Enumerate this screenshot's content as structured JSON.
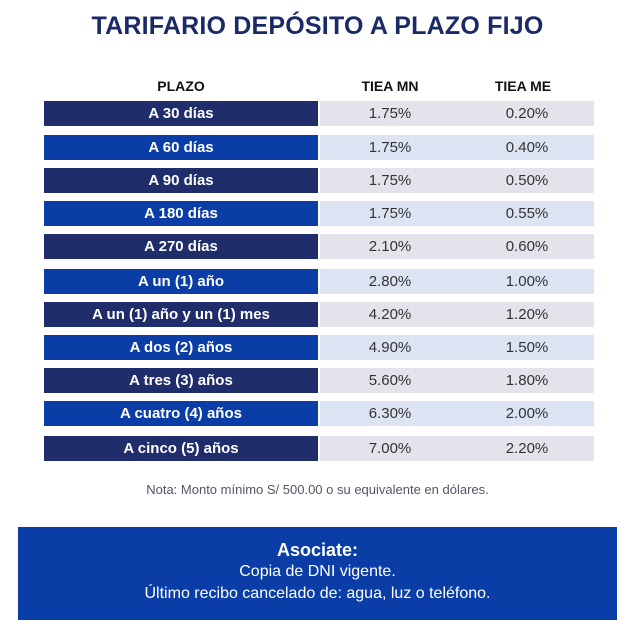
{
  "title": "TARIFARIO DEPÓSITO A PLAZO FIJO",
  "table": {
    "headers": {
      "plazo": "PLAZO",
      "mn": "TIEA MN",
      "me": "TIEA ME"
    },
    "rows": [
      {
        "plazo": "A 30 días",
        "mn": "1.75%",
        "me": "0.20%"
      },
      {
        "plazo": "A 60 días",
        "mn": "1.75%",
        "me": "0.40%"
      },
      {
        "plazo": "A 90 días",
        "mn": "1.75%",
        "me": "0.50%"
      },
      {
        "plazo": "A 180 días",
        "mn": "1.75%",
        "me": "0.55%"
      },
      {
        "plazo": "A 270 días",
        "mn": "2.10%",
        "me": "0.60%"
      },
      {
        "plazo": "A un (1) año",
        "mn": "2.80%",
        "me": "1.00%"
      },
      {
        "plazo": "A un (1) año y un (1) mes",
        "mn": "4.20%",
        "me": "1.20%"
      },
      {
        "plazo": "A dos (2) años",
        "mn": "4.90%",
        "me": "1.50%"
      },
      {
        "plazo": "A tres (3) años",
        "mn": "5.60%",
        "me": "1.80%"
      },
      {
        "plazo": "A cuatro (4) años",
        "mn": "6.30%",
        "me": "2.00%"
      },
      {
        "plazo": "A cinco (5) años",
        "mn": "7.00%",
        "me": "2.20%"
      }
    ]
  },
  "note": "Nota: Monto mínimo S/ 500.00 o su equivalente en dólares.",
  "footer": {
    "title": "Asociate:",
    "line1": "Copia de DNI vigente.",
    "line2": "Último recibo cancelado de: agua, luz o teléfono."
  },
  "colors": {
    "title": "#1a2a66",
    "dark_label": "#1f2d6b",
    "bright_label": "#0a3ea6",
    "footer_bg": "#0a3ea6"
  }
}
